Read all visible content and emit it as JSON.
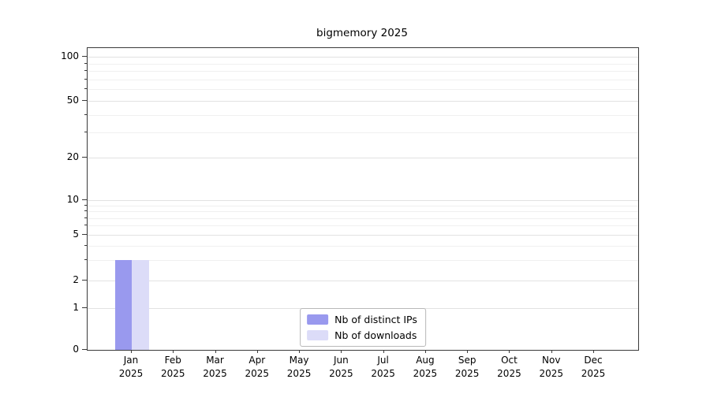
{
  "chart_data": {
    "type": "bar",
    "title": "bigmemory 2025",
    "categories": [
      {
        "month": "Jan",
        "year": "2025"
      },
      {
        "month": "Feb",
        "year": "2025"
      },
      {
        "month": "Mar",
        "year": "2025"
      },
      {
        "month": "Apr",
        "year": "2025"
      },
      {
        "month": "May",
        "year": "2025"
      },
      {
        "month": "Jun",
        "year": "2025"
      },
      {
        "month": "Jul",
        "year": "2025"
      },
      {
        "month": "Aug",
        "year": "2025"
      },
      {
        "month": "Sep",
        "year": "2025"
      },
      {
        "month": "Oct",
        "year": "2025"
      },
      {
        "month": "Nov",
        "year": "2025"
      },
      {
        "month": "Dec",
        "year": "2025"
      }
    ],
    "series": [
      {
        "name": "Nb of distinct IPs",
        "color": "#9999ee",
        "values": [
          3,
          0,
          0,
          0,
          0,
          0,
          0,
          0,
          0,
          0,
          0,
          0
        ]
      },
      {
        "name": "Nb of downloads",
        "color": "#dcdcf8",
        "values": [
          3,
          0,
          0,
          0,
          0,
          0,
          0,
          0,
          0,
          0,
          0,
          0
        ]
      }
    ],
    "yticks": [
      0,
      1,
      2,
      5,
      10,
      20,
      50,
      100
    ],
    "ylim": [
      0,
      110
    ],
    "yscale": "log-like",
    "xlabel": "",
    "ylabel": "",
    "grid": "horizontal",
    "legend_position": "bottom-center"
  }
}
